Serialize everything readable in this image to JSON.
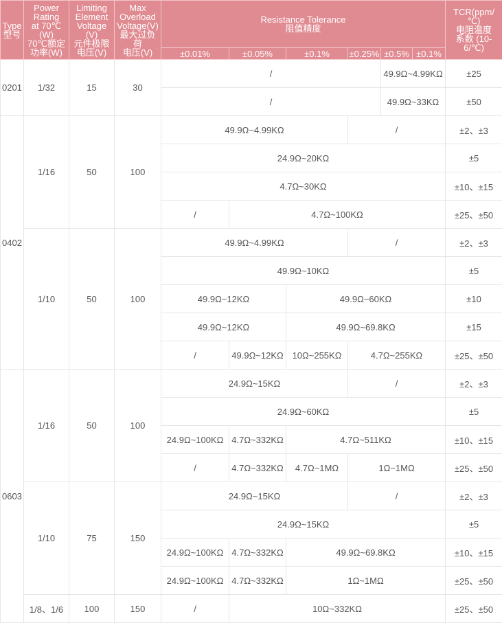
{
  "headers": {
    "type": [
      "Type",
      "型号"
    ],
    "power": [
      "Power",
      "Rating",
      "at 70℃",
      "(W)",
      "70℃额定",
      "功率(W)"
    ],
    "limiting": [
      "Limiting",
      "Element",
      "Voltage",
      "(V)",
      "元件极限",
      "电压(V)"
    ],
    "overload": [
      "Max",
      "Overload",
      "Voltage(V)",
      "最大过负",
      "荷",
      "电压(V)"
    ],
    "tolerance": [
      "Resistance Tolerance",
      "阻值精度"
    ],
    "tcr": [
      "TCR(ppm/",
      "℃)",
      "电阻温度",
      "系数 (10-",
      "6/℃)"
    ],
    "tolerance_cols": [
      "±0.01%",
      "±0.05%",
      "±0.1%",
      "±0.25%",
      "±0.5%",
      "±0.1%"
    ]
  },
  "rows": {
    "r0201a": {
      "type": "0201",
      "power": "1/32",
      "limiting": "15",
      "overload": "30",
      "range1": "/",
      "range2": "49.9Ω~4.99KΩ",
      "tcr": "±25"
    },
    "r0201b": {
      "range1": "/",
      "range2": "49.9Ω~33KΩ",
      "tcr": "±50"
    },
    "r0402_1": {
      "type": "0402",
      "power": "1/16",
      "limiting": "50",
      "overload": "100",
      "range1": "49.9Ω~4.99KΩ",
      "range2": "/",
      "tcr": "±2、±3"
    },
    "r0402_2": {
      "range1": "24.9Ω~20KΩ",
      "tcr": "±5"
    },
    "r0402_3": {
      "range1": "4.7Ω~30KΩ",
      "tcr": "±10、±15"
    },
    "r0402_4": {
      "range1": "/",
      "range2": "4.7Ω~100KΩ",
      "tcr": "±25、±50"
    },
    "r0402_5": {
      "power": "1/10",
      "limiting": "50",
      "overload": "100",
      "range1": "49.9Ω~4.99KΩ",
      "range2": "/",
      "tcr": "±2、±3"
    },
    "r0402_6": {
      "range1": "49.9Ω~10KΩ",
      "tcr": "±5"
    },
    "r0402_7": {
      "range1": "49.9Ω~12KΩ",
      "range2": "49.9Ω~60KΩ",
      "tcr": "±10"
    },
    "r0402_8": {
      "range1": "49.9Ω~12KΩ",
      "range2": "49.9Ω~69.8KΩ",
      "tcr": "±15"
    },
    "r0402_9": {
      "range1": "/",
      "range2": "49.9Ω~12KΩ",
      "range3": "10Ω~255KΩ",
      "range4": "4.7Ω~255KΩ",
      "tcr": "±25、±50"
    },
    "r0603_1": {
      "type": "0603",
      "power": "1/16",
      "limiting": "50",
      "overload": "100",
      "range1": "24.9Ω~15KΩ",
      "range2": "/",
      "tcr": "±2、±3"
    },
    "r0603_2": {
      "range1": "24.9Ω~60KΩ",
      "tcr": "±5"
    },
    "r0603_3": {
      "range1": "24.9Ω~100KΩ",
      "range2": "4.7Ω~332KΩ",
      "range3": "4.7Ω~511KΩ",
      "tcr": "±10、±15"
    },
    "r0603_4": {
      "range1": "/",
      "range2": "4.7Ω~332KΩ",
      "range3": "4.7Ω~1MΩ",
      "range4": "1Ω~1MΩ",
      "tcr": "±25、±50"
    },
    "r0603_5": {
      "power": "1/10",
      "limiting": "75",
      "overload": "150",
      "range1": "24.9Ω~15KΩ",
      "range2": "/",
      "tcr": "±2、±3"
    },
    "r0603_6": {
      "range1": "24.9Ω~15KΩ",
      "tcr": "±5"
    },
    "r0603_7": {
      "range1": "24.9Ω~100KΩ",
      "range2": "4.7Ω~332KΩ",
      "range3": "49.9Ω~69.8KΩ",
      "tcr": "±10、±15"
    },
    "r0603_8": {
      "range1": "24.9Ω~100KΩ",
      "range2": "4.7Ω~332KΩ",
      "range3": "1Ω~1MΩ",
      "tcr": "±25、±50"
    },
    "r0603_9": {
      "power": "1/8、1/6",
      "limiting": "100",
      "overload": "150",
      "range1": "/",
      "range2": "10Ω~332KΩ",
      "tcr": "±25、±50"
    }
  },
  "colors": {
    "header_bg": "#e08a91",
    "header_text": "#ffffff",
    "body_text": "#555555",
    "border": "#e6e6e6"
  }
}
